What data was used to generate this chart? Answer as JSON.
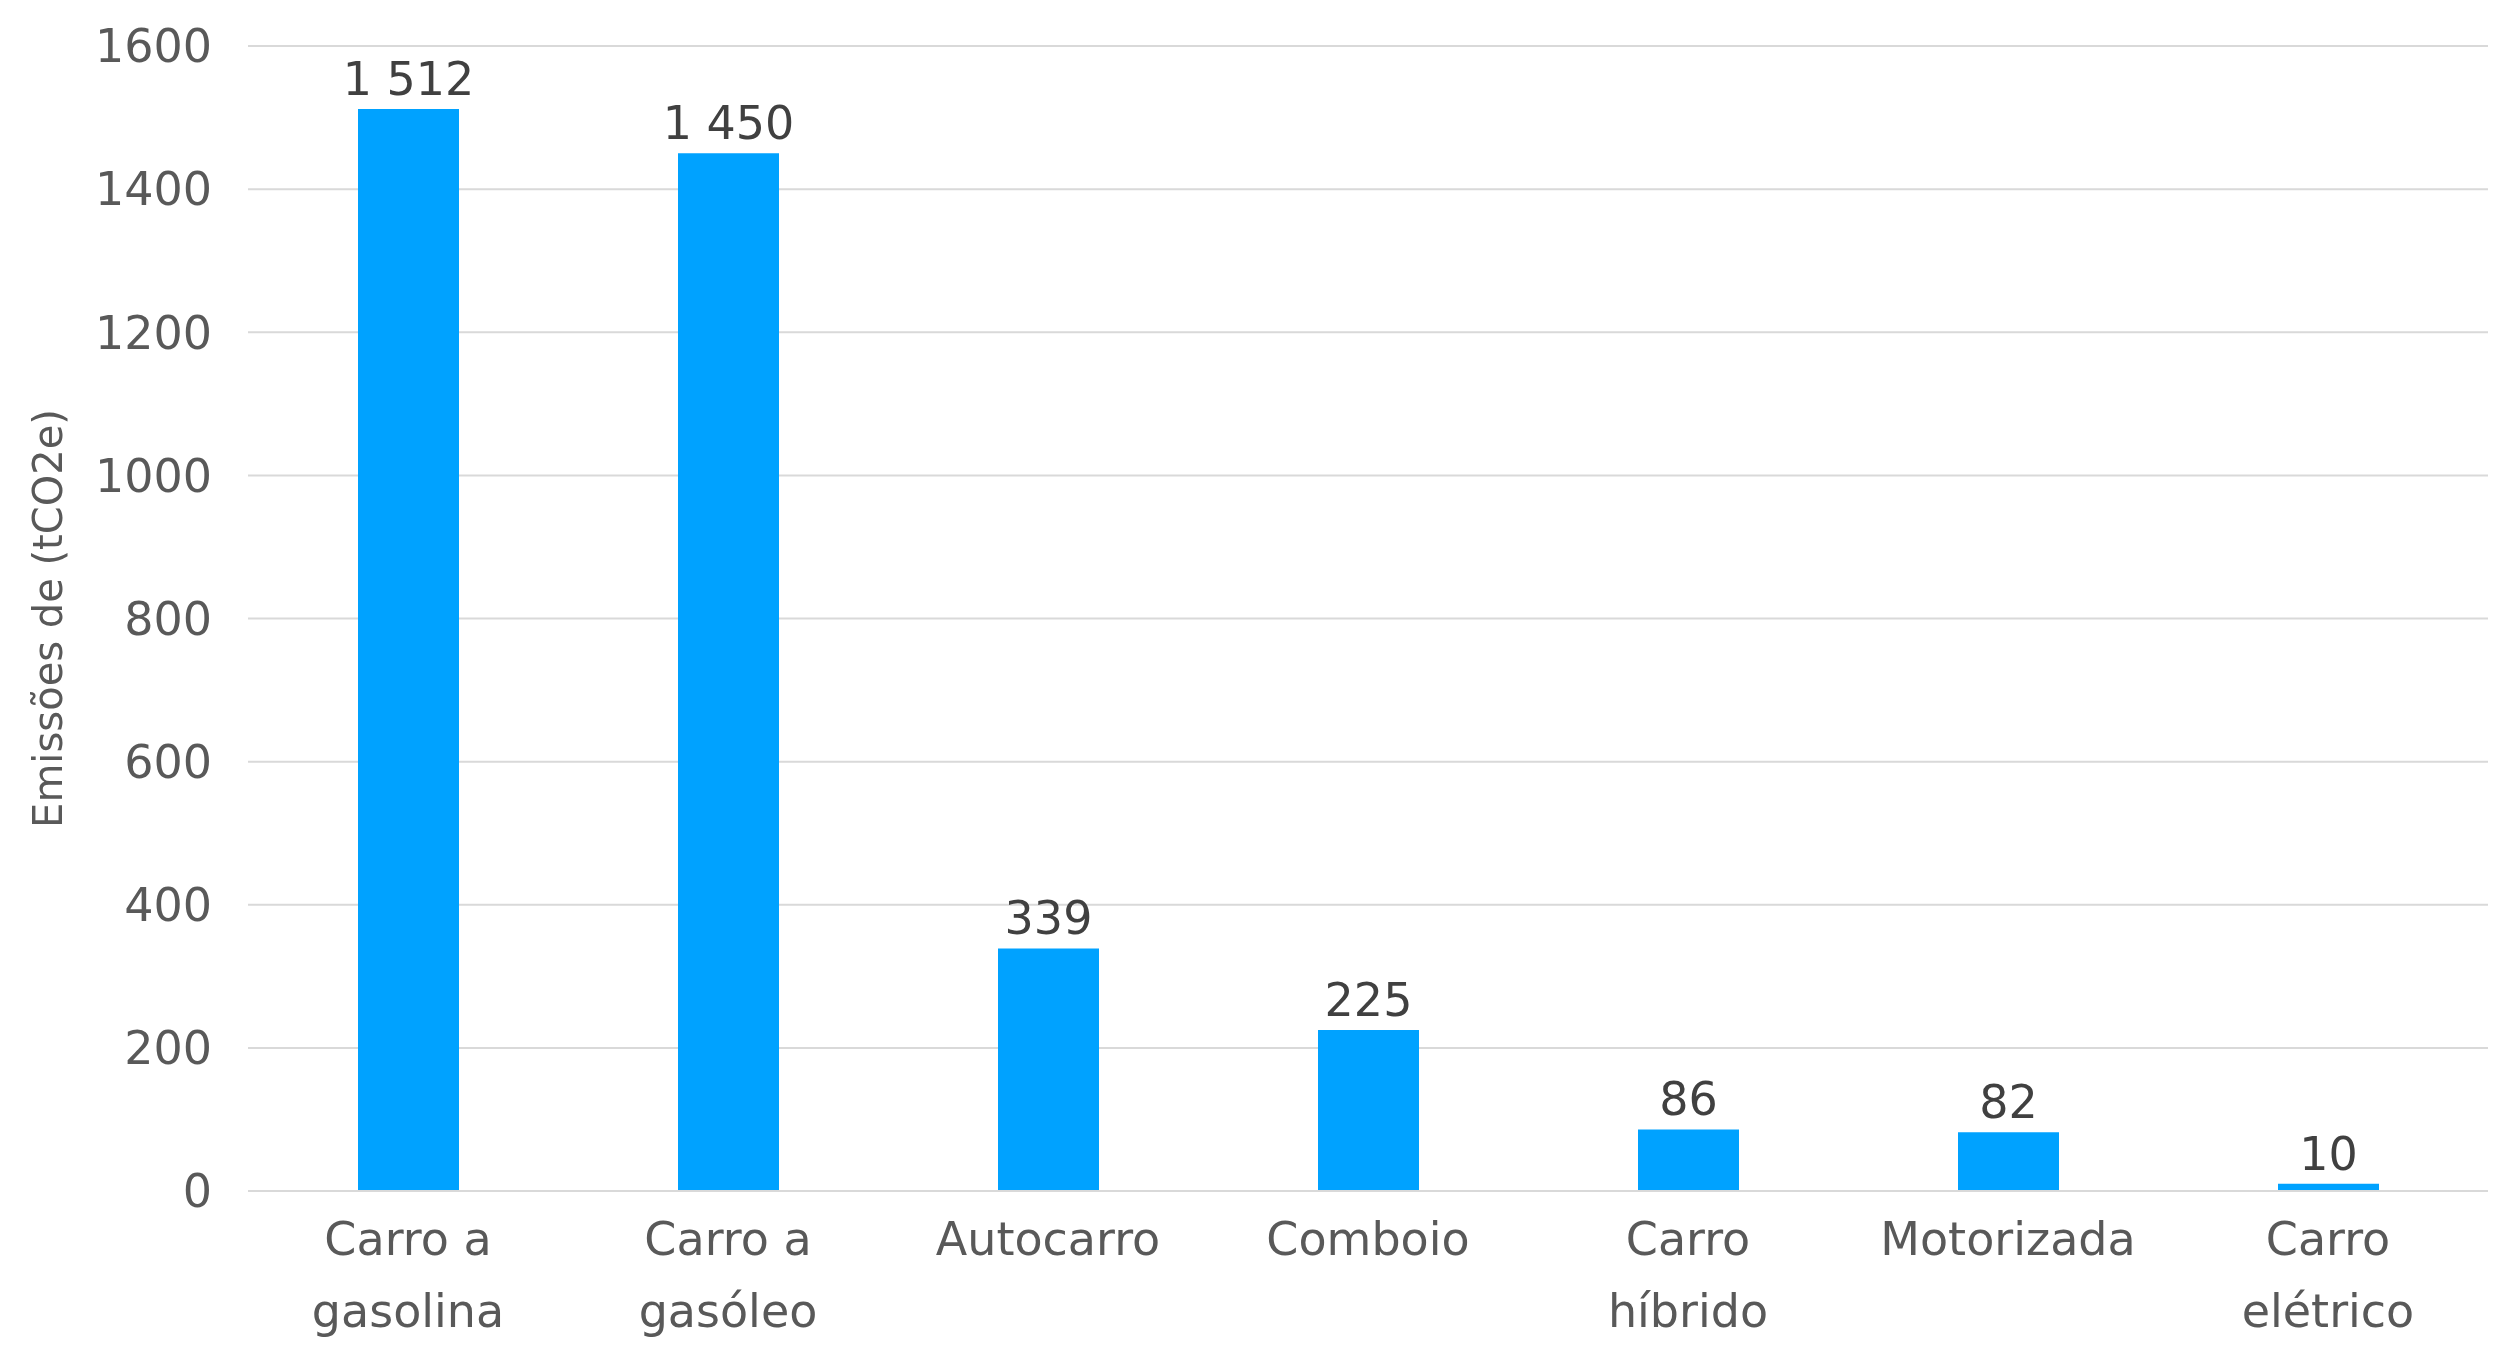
{
  "chart_data": {
    "type": "bar",
    "ylabel": "Emissões de (tCO2e)",
    "categories": [
      "Carro a gasolina",
      "Carro a gasóleo",
      "Autocarro",
      "Comboio",
      "Carro híbrido",
      "Motorizada",
      "Carro elétrico"
    ],
    "values": [
      1512,
      1450,
      339,
      225,
      86,
      82,
      10
    ],
    "value_labels": [
      "1 512",
      "1 450",
      "339",
      "225",
      "86",
      "82",
      "10"
    ],
    "color": "#00a2ff",
    "ylim": [
      0,
      1600
    ],
    "yticks": [
      0,
      200,
      400,
      600,
      800,
      1000,
      1200,
      1400,
      1600
    ],
    "grid": "y",
    "legend": false
  }
}
